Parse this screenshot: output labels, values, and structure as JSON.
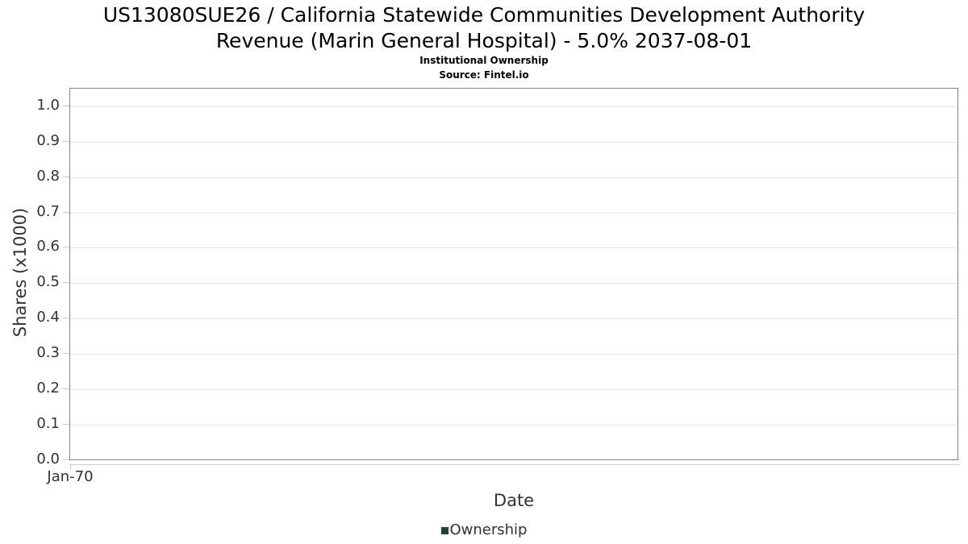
{
  "header": {
    "title_line1": "US13080SUE26 / California Statewide Communities Development Authority",
    "title_line2": "Revenue (Marin General Hospital) - 5.0% 2037-08-01",
    "subtitle": "Institutional Ownership",
    "source": "Source: Fintel.io"
  },
  "chart_data": {
    "type": "line",
    "title": "US13080SUE26 / California Statewide Communities Development Authority Revenue (Marin General Hospital) - 5.0% 2037-08-01",
    "subtitle": "Institutional Ownership",
    "source": "Source: Fintel.io",
    "xlabel": "Date",
    "ylabel": "Shares (x1000)",
    "x_ticks": [
      "Jan-70"
    ],
    "y_ticks": [
      "0.0",
      "0.1",
      "0.2",
      "0.3",
      "0.4",
      "0.5",
      "0.6",
      "0.7",
      "0.8",
      "0.9",
      "1.0"
    ],
    "ylim": [
      0.0,
      1.05
    ],
    "grid": true,
    "legend_position": "bottom",
    "series": [
      {
        "name": "Ownership",
        "color": "#1c4a28",
        "x": [],
        "values": []
      }
    ]
  },
  "legend": {
    "entries": [
      {
        "label": "Ownership",
        "color": "#1c4a28"
      }
    ]
  },
  "colors": {
    "background": "#ffffff",
    "title_text": "#000000",
    "axis_text": "#333333",
    "grid_line": "#e6e6e6",
    "plot_border": "#848484",
    "axis_line": "#cccccc",
    "legend_marker": "#1c4a28"
  }
}
